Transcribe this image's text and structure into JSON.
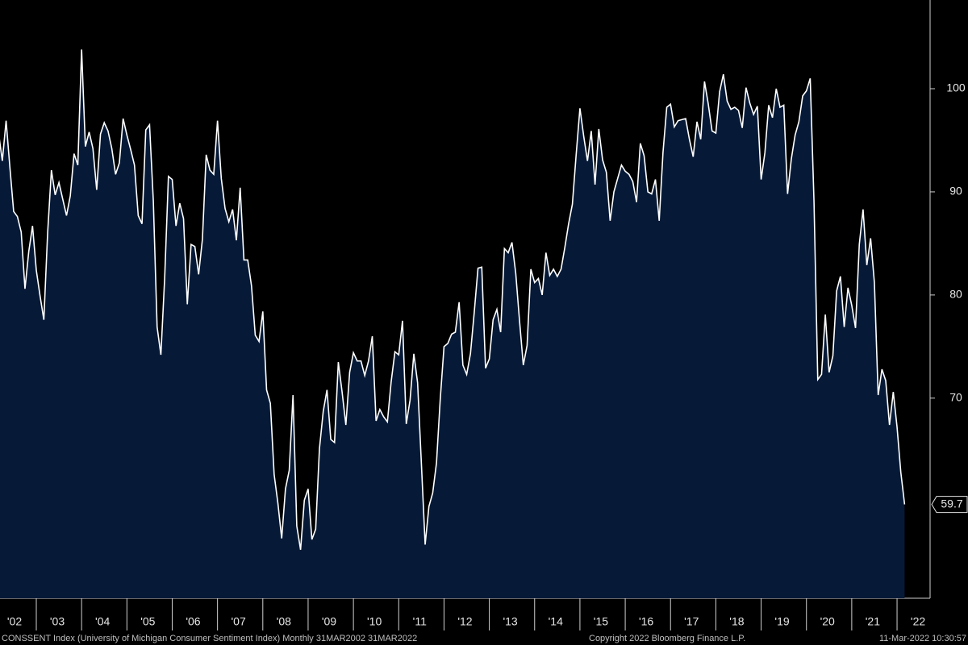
{
  "chart_data": {
    "type": "area",
    "x": [
      "2002-03",
      "2002-04",
      "2002-05",
      "2002-06",
      "2002-07",
      "2002-08",
      "2002-09",
      "2002-10",
      "2002-11",
      "2002-12",
      "2003-01",
      "2003-02",
      "2003-03",
      "2003-04",
      "2003-05",
      "2003-06",
      "2003-07",
      "2003-08",
      "2003-09",
      "2003-10",
      "2003-11",
      "2003-12",
      "2004-01",
      "2004-02",
      "2004-03",
      "2004-04",
      "2004-05",
      "2004-06",
      "2004-07",
      "2004-08",
      "2004-09",
      "2004-10",
      "2004-11",
      "2004-12",
      "2005-01",
      "2005-02",
      "2005-03",
      "2005-04",
      "2005-05",
      "2005-06",
      "2005-07",
      "2005-08",
      "2005-09",
      "2005-10",
      "2005-11",
      "2005-12",
      "2006-01",
      "2006-02",
      "2006-03",
      "2006-04",
      "2006-05",
      "2006-06",
      "2006-07",
      "2006-08",
      "2006-09",
      "2006-10",
      "2006-11",
      "2006-12",
      "2007-01",
      "2007-02",
      "2007-03",
      "2007-04",
      "2007-05",
      "2007-06",
      "2007-07",
      "2007-08",
      "2007-09",
      "2007-10",
      "2007-11",
      "2007-12",
      "2008-01",
      "2008-02",
      "2008-03",
      "2008-04",
      "2008-05",
      "2008-06",
      "2008-07",
      "2008-08",
      "2008-09",
      "2008-10",
      "2008-11",
      "2008-12",
      "2009-01",
      "2009-02",
      "2009-03",
      "2009-04",
      "2009-05",
      "2009-06",
      "2009-07",
      "2009-08",
      "2009-09",
      "2009-10",
      "2009-11",
      "2009-12",
      "2010-01",
      "2010-02",
      "2010-03",
      "2010-04",
      "2010-05",
      "2010-06",
      "2010-07",
      "2010-08",
      "2010-09",
      "2010-10",
      "2010-11",
      "2010-12",
      "2011-01",
      "2011-02",
      "2011-03",
      "2011-04",
      "2011-05",
      "2011-06",
      "2011-07",
      "2011-08",
      "2011-09",
      "2011-10",
      "2011-11",
      "2011-12",
      "2012-01",
      "2012-02",
      "2012-03",
      "2012-04",
      "2012-05",
      "2012-06",
      "2012-07",
      "2012-08",
      "2012-09",
      "2012-10",
      "2012-11",
      "2012-12",
      "2013-01",
      "2013-02",
      "2013-03",
      "2013-04",
      "2013-05",
      "2013-06",
      "2013-07",
      "2013-08",
      "2013-09",
      "2013-10",
      "2013-11",
      "2013-12",
      "2014-01",
      "2014-02",
      "2014-03",
      "2014-04",
      "2014-05",
      "2014-06",
      "2014-07",
      "2014-08",
      "2014-09",
      "2014-10",
      "2014-11",
      "2014-12",
      "2015-01",
      "2015-02",
      "2015-03",
      "2015-04",
      "2015-05",
      "2015-06",
      "2015-07",
      "2015-08",
      "2015-09",
      "2015-10",
      "2015-11",
      "2015-12",
      "2016-01",
      "2016-02",
      "2016-03",
      "2016-04",
      "2016-05",
      "2016-06",
      "2016-07",
      "2016-08",
      "2016-09",
      "2016-10",
      "2016-11",
      "2016-12",
      "2017-01",
      "2017-02",
      "2017-03",
      "2017-04",
      "2017-05",
      "2017-06",
      "2017-07",
      "2017-08",
      "2017-09",
      "2017-10",
      "2017-11",
      "2017-12",
      "2018-01",
      "2018-02",
      "2018-03",
      "2018-04",
      "2018-05",
      "2018-06",
      "2018-07",
      "2018-08",
      "2018-09",
      "2018-10",
      "2018-11",
      "2018-12",
      "2019-01",
      "2019-02",
      "2019-03",
      "2019-04",
      "2019-05",
      "2019-06",
      "2019-07",
      "2019-08",
      "2019-09",
      "2019-10",
      "2019-11",
      "2019-12",
      "2020-01",
      "2020-02",
      "2020-03",
      "2020-04",
      "2020-05",
      "2020-06",
      "2020-07",
      "2020-08",
      "2020-09",
      "2020-10",
      "2020-11",
      "2020-12",
      "2021-01",
      "2021-02",
      "2021-03",
      "2021-04",
      "2021-05",
      "2021-06",
      "2021-07",
      "2021-08",
      "2021-09",
      "2021-10",
      "2021-11",
      "2021-12",
      "2022-01",
      "2022-02",
      "2022-03"
    ],
    "series": [
      {
        "color": "#ffffff",
        "fill": "#061a38",
        "values": [
          95.7,
          93.0,
          96.9,
          92.4,
          88.1,
          87.6,
          86.1,
          80.6,
          84.2,
          86.7,
          82.4,
          79.9,
          77.6,
          86.0,
          92.1,
          89.7,
          90.9,
          89.3,
          87.7,
          89.6,
          93.7,
          92.6,
          103.8,
          94.4,
          95.8,
          94.2,
          90.2,
          95.6,
          96.7,
          95.9,
          94.2,
          91.7,
          92.8,
          97.1,
          95.5,
          94.1,
          92.6,
          87.7,
          86.9,
          96.0,
          96.5,
          89.1,
          76.9,
          74.2,
          81.6,
          91.5,
          91.2,
          86.7,
          88.9,
          87.4,
          79.1,
          84.9,
          84.7,
          82.0,
          85.4,
          93.6,
          92.1,
          91.7,
          96.9,
          91.3,
          88.4,
          87.1,
          88.3,
          85.3,
          90.4,
          83.4,
          83.4,
          80.9,
          76.1,
          75.5,
          78.4,
          70.8,
          69.5,
          62.6,
          59.8,
          56.4,
          61.2,
          63.0,
          70.3,
          57.6,
          55.3,
          60.1,
          61.2,
          56.3,
          57.3,
          65.1,
          68.7,
          70.8,
          66.0,
          65.7,
          73.5,
          70.6,
          67.4,
          72.5,
          74.4,
          73.6,
          73.6,
          72.2,
          73.6,
          76.0,
          67.8,
          68.9,
          68.2,
          67.7,
          71.6,
          74.5,
          74.2,
          77.5,
          67.5,
          69.8,
          74.3,
          71.5,
          63.7,
          55.8,
          59.5,
          60.8,
          63.7,
          69.9,
          75.0,
          75.3,
          76.2,
          76.4,
          79.3,
          73.2,
          72.3,
          74.3,
          78.3,
          82.6,
          82.7,
          72.9,
          73.8,
          77.6,
          78.6,
          76.4,
          84.5,
          84.1,
          85.1,
          82.1,
          77.5,
          73.2,
          75.1,
          82.5,
          81.2,
          81.6,
          80.0,
          84.1,
          81.9,
          82.5,
          81.8,
          82.5,
          84.6,
          86.9,
          88.8,
          93.6,
          98.1,
          95.4,
          93.0,
          95.9,
          90.7,
          96.1,
          93.1,
          91.9,
          87.2,
          90.0,
          91.3,
          92.6,
          92.0,
          91.7,
          91.0,
          89.0,
          94.7,
          93.5,
          90.0,
          89.8,
          91.2,
          87.2,
          93.8,
          98.2,
          98.5,
          96.3,
          96.9,
          97.0,
          97.1,
          95.1,
          93.4,
          96.8,
          95.1,
          100.7,
          98.5,
          95.9,
          95.7,
          99.7,
          101.4,
          98.8,
          98.0,
          98.2,
          97.9,
          96.2,
          100.1,
          98.6,
          97.5,
          98.3,
          91.2,
          93.8,
          98.4,
          97.2,
          100.0,
          98.2,
          98.4,
          89.8,
          93.2,
          95.5,
          96.8,
          99.3,
          99.8,
          101.0,
          89.1,
          71.8,
          72.3,
          78.1,
          72.5,
          74.1,
          80.4,
          81.8,
          76.9,
          80.7,
          79.0,
          76.8,
          84.9,
          88.3,
          82.9,
          85.5,
          81.2,
          70.3,
          72.8,
          71.7,
          67.4,
          70.6,
          67.2,
          62.8,
          59.7
        ]
      }
    ],
    "ylim": [
      50.6,
      108.6
    ],
    "yticks": [
      70,
      80,
      90,
      100
    ],
    "xticks": [
      {
        "value": "2002-01",
        "label": "'02"
      },
      {
        "value": "2003-01",
        "label": "'03"
      },
      {
        "value": "2004-01",
        "label": "'04"
      },
      {
        "value": "2005-01",
        "label": "'05"
      },
      {
        "value": "2006-01",
        "label": "'06"
      },
      {
        "value": "2007-01",
        "label": "'07"
      },
      {
        "value": "2008-01",
        "label": "'08"
      },
      {
        "value": "2009-01",
        "label": "'09"
      },
      {
        "value": "2010-01",
        "label": "'10"
      },
      {
        "value": "2011-01",
        "label": "'11"
      },
      {
        "value": "2012-01",
        "label": "'12"
      },
      {
        "value": "2013-01",
        "label": "'13"
      },
      {
        "value": "2014-01",
        "label": "'14"
      },
      {
        "value": "2015-01",
        "label": "'15"
      },
      {
        "value": "2016-01",
        "label": "'16"
      },
      {
        "value": "2017-01",
        "label": "'17"
      },
      {
        "value": "2018-01",
        "label": "'18"
      },
      {
        "value": "2019-01",
        "label": "'19"
      },
      {
        "value": "2020-01",
        "label": "'20"
      },
      {
        "value": "2021-01",
        "label": "'21"
      },
      {
        "value": "2022-01",
        "label": "'22"
      }
    ],
    "footer_left": "CONSSENT Index (University of Michigan Consumer Sentiment Index) Monthly 31MAR2002 31MAR2022",
    "footer_center": "Copyright 2022 Bloomberg Finance L.P.",
    "footer_right": "11-Mar-2022 10:30:57"
  }
}
